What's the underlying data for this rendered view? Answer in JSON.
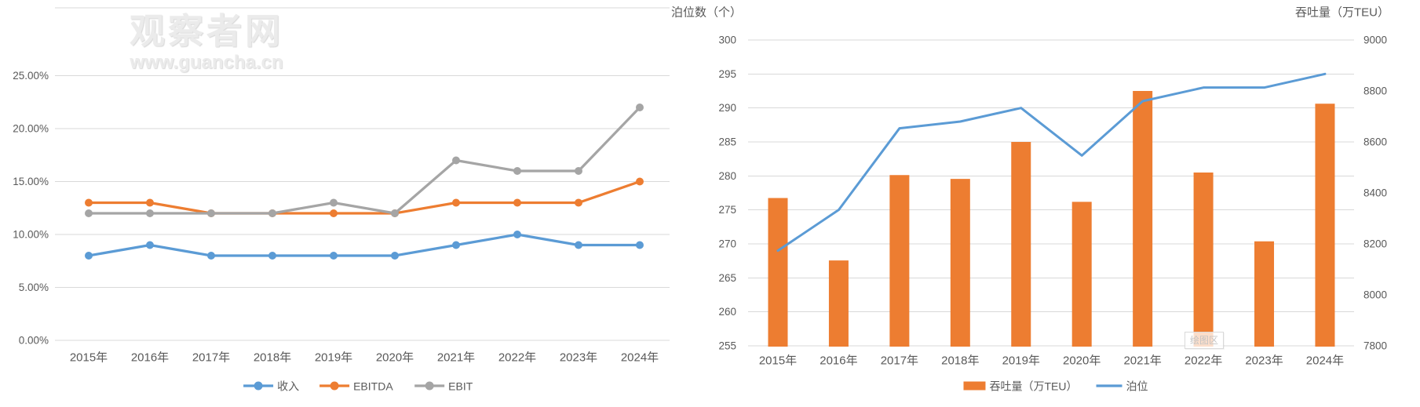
{
  "watermark": {
    "site_name": "观察者网",
    "site_url": "www.guancha.cn"
  },
  "chart_data": [
    {
      "type": "line",
      "title": "",
      "categories": [
        "2015年",
        "2016年",
        "2017年",
        "2018年",
        "2019年",
        "2020年",
        "2021年",
        "2022年",
        "2023年",
        "2024年"
      ],
      "y_axis": {
        "min": 0,
        "max": 25,
        "step": 5,
        "unit": "%",
        "tick_labels": [
          "0.00%",
          "5.00%",
          "10.00%",
          "15.00%",
          "20.00%",
          "25.00%"
        ]
      },
      "grid": true,
      "legend_position": "bottom",
      "series": [
        {
          "name": "收入",
          "color": "#5B9BD5",
          "values": [
            8,
            9,
            8,
            8,
            8,
            8,
            9,
            10,
            9,
            9
          ]
        },
        {
          "name": "EBITDA",
          "color": "#ED7D31",
          "values": [
            13,
            13,
            12,
            12,
            12,
            12,
            13,
            13,
            13,
            15
          ]
        },
        {
          "name": "EBIT",
          "color": "#A5A5A5",
          "values": [
            12,
            12,
            12,
            12,
            13,
            12,
            17,
            16,
            16,
            22
          ]
        }
      ]
    },
    {
      "type": "bar-line-combo",
      "title": "",
      "categories": [
        "2015年",
        "2016年",
        "2017年",
        "2018年",
        "2019年",
        "2020年",
        "2021年",
        "2022年",
        "2023年",
        "2024年"
      ],
      "left_axis": {
        "title": "泊位数（个）",
        "min": 255,
        "max": 300,
        "step": 5,
        "tick_labels": [
          "255",
          "260",
          "265",
          "270",
          "275",
          "280",
          "285",
          "290",
          "295",
          "300"
        ]
      },
      "right_axis": {
        "title": "吞吐量（万TEU）",
        "min": 7800,
        "max": 9000,
        "step": 200,
        "tick_labels": [
          "7800",
          "8000",
          "8200",
          "8400",
          "8600",
          "8800",
          "9000"
        ]
      },
      "grid": true,
      "legend_position": "bottom",
      "bar_series": {
        "name": "吞吐量（万TEU）",
        "color": "#ED7D31",
        "axis": "right",
        "values": [
          8380,
          8135,
          8470,
          8455,
          8600,
          8365,
          8800,
          8480,
          8210,
          8750
        ]
      },
      "line_series": {
        "name": "泊位",
        "color": "#5B9BD5",
        "axis": "left",
        "values": [
          269,
          275,
          287,
          288,
          290,
          283,
          291,
          293,
          293,
          295
        ]
      },
      "overlay_label": "绘图区"
    }
  ],
  "colors": {
    "gridline": "#D9D9D9",
    "axis_text": "#595959",
    "bar_orange": "#ED7D31",
    "line_blue": "#5B9BD5"
  }
}
